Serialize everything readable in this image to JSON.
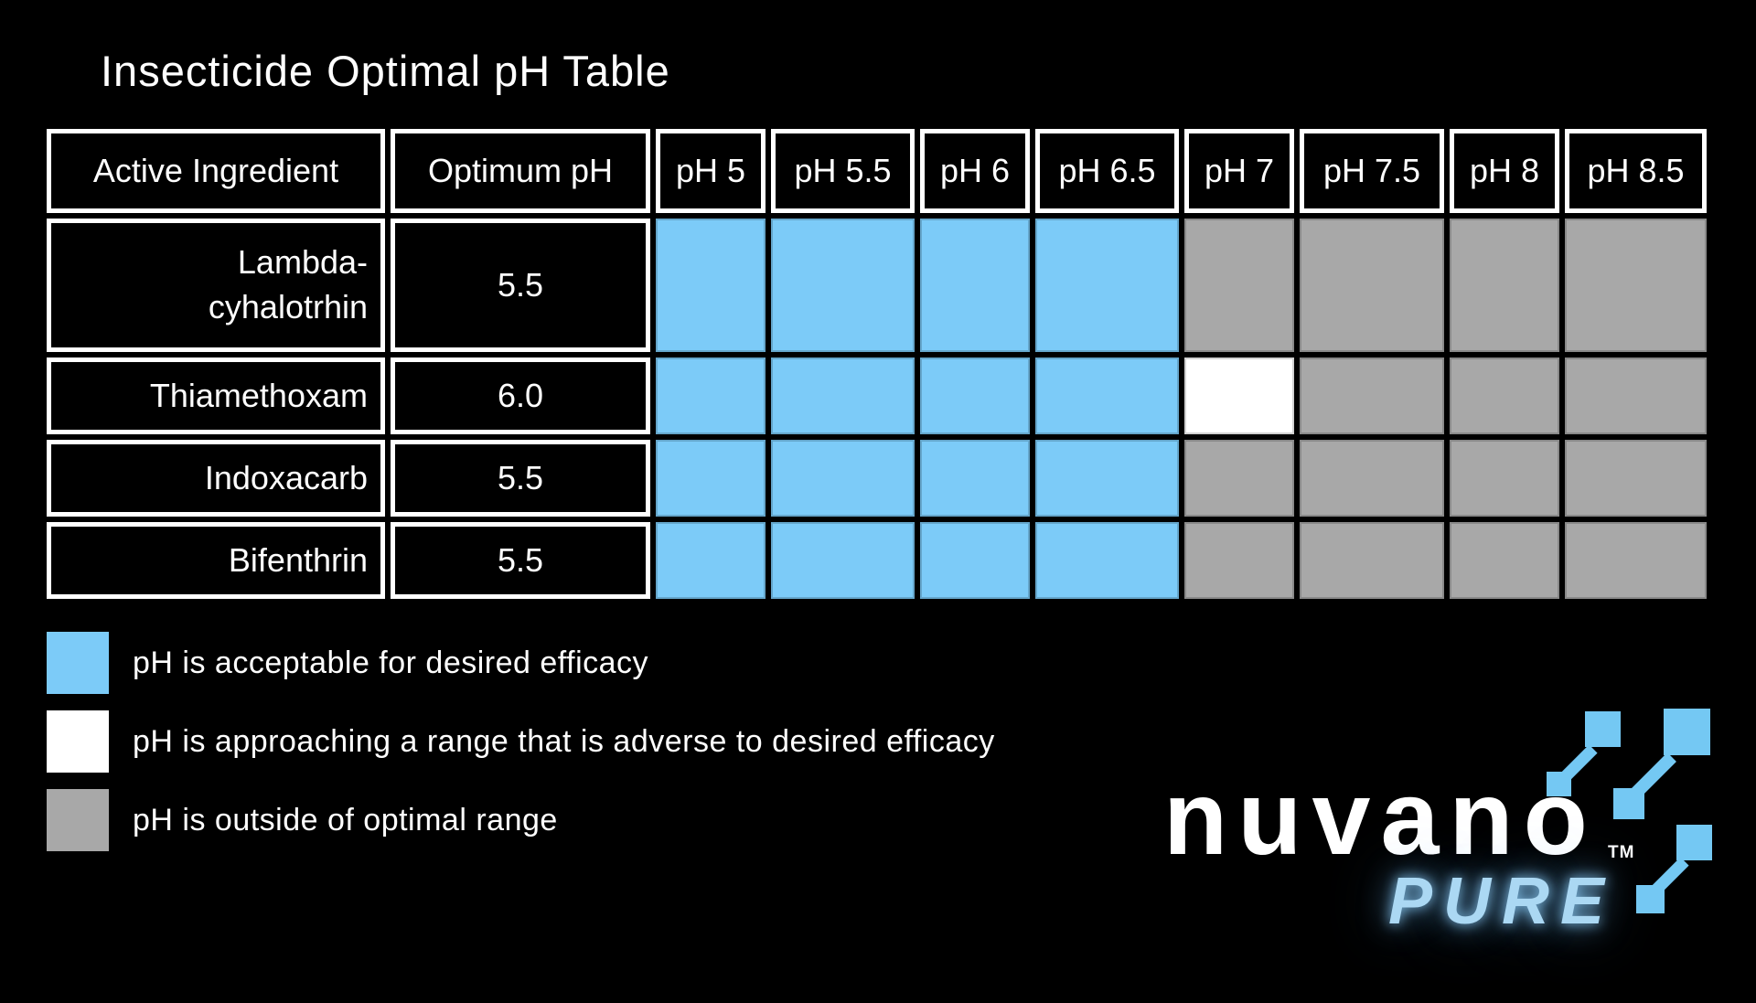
{
  "page": {
    "title": "Insecticide Optimal pH Table",
    "background": "#000000"
  },
  "colors": {
    "acceptable": "#7CCBF8",
    "approaching": "#FFFFFF",
    "outside": "#A8A8A8",
    "logo_mark_blue": "#74C8F3",
    "sub_brand_blue": "#ABD8F3"
  },
  "table": {
    "columns": [
      "Active Ingredient",
      "Optimum pH",
      "pH 5",
      "pH 5.5",
      "pH 6",
      "pH 6.5",
      "pH 7",
      "pH 7.5",
      "pH 8",
      "pH 8.5"
    ],
    "rows": [
      {
        "ingredient": "Lambda-\ncyhalotrhin",
        "optimum_ph": "5.5",
        "cells": [
          "acceptable",
          "acceptable",
          "acceptable",
          "acceptable",
          "outside",
          "outside",
          "outside",
          "outside"
        ]
      },
      {
        "ingredient": "Thiamethoxam",
        "optimum_ph": "6.0",
        "cells": [
          "acceptable",
          "acceptable",
          "acceptable",
          "acceptable",
          "approaching",
          "outside",
          "outside",
          "outside"
        ]
      },
      {
        "ingredient": "Indoxacarb",
        "optimum_ph": "5.5",
        "cells": [
          "acceptable",
          "acceptable",
          "acceptable",
          "acceptable",
          "outside",
          "outside",
          "outside",
          "outside"
        ]
      },
      {
        "ingredient": "Bifenthrin",
        "optimum_ph": "5.5",
        "cells": [
          "acceptable",
          "acceptable",
          "acceptable",
          "acceptable",
          "outside",
          "outside",
          "outside",
          "outside"
        ]
      }
    ]
  },
  "legend": [
    {
      "status": "acceptable",
      "label": "pH is acceptable for desired efficacy"
    },
    {
      "status": "approaching",
      "label": "pH is approaching a range that is adverse to desired efficacy"
    },
    {
      "status": "outside",
      "label": "pH is outside of optimal range"
    }
  ],
  "logo": {
    "brand": "nuvano",
    "trademark": "TM",
    "sub_brand": "PURE"
  }
}
